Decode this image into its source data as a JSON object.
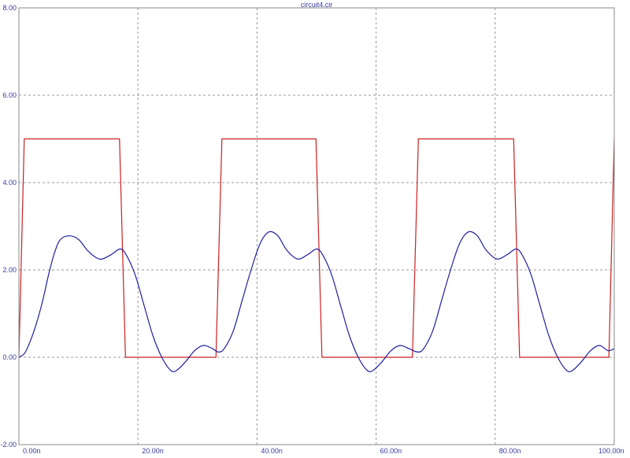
{
  "chart_data": {
    "type": "line",
    "title": "circuit4.cir",
    "xlabel": "",
    "ylabel": "",
    "xlim": [
      0,
      100
    ],
    "ylim": [
      -2,
      8
    ],
    "grid": true,
    "x_ticks": [
      "0.00n",
      "20.00n",
      "40.00n",
      "60.00n",
      "80.00n",
      "100.00n"
    ],
    "x_tick_values": [
      0,
      20,
      40,
      60,
      80,
      100
    ],
    "y_ticks": [
      "8.00",
      "6.00",
      "4.00",
      "2.00",
      "0.00",
      "-2.00"
    ],
    "y_tick_values": [
      8,
      6,
      4,
      2,
      0,
      -2
    ],
    "series": [
      {
        "color": "#cc2020",
        "x": [
          0,
          0.9,
          16.9,
          17.9,
          33.1,
          34.1,
          49.9,
          50.9,
          66.1,
          67.1,
          83.1,
          84.1,
          99.1,
          100
        ],
        "y": [
          0,
          5,
          5,
          0,
          0,
          5,
          5,
          0,
          0,
          5,
          5,
          0,
          0,
          5
        ]
      },
      {
        "color": "#2020a0",
        "x": [
          0,
          1,
          2,
          3,
          4,
          5,
          6,
          7,
          8.5,
          10,
          11.5,
          13,
          14,
          15.5,
          17,
          18,
          19.5,
          21,
          22.5,
          24,
          25.5,
          26.5,
          28,
          29.5,
          31,
          32.5,
          33.5,
          34.5,
          36,
          37.5,
          39,
          40.5,
          42,
          43.5,
          45,
          46.8,
          48.5,
          50,
          51,
          52.5,
          54,
          55.5,
          57,
          58.5,
          59.5,
          61,
          62.5,
          64,
          65.5,
          67,
          68,
          69.5,
          71,
          72.5,
          74,
          75.5,
          77,
          78.5,
          80.3,
          82,
          83.5,
          84.5,
          86,
          87.5,
          89,
          90.5,
          92,
          93,
          94.5,
          96,
          97.5,
          99,
          100
        ],
        "y": [
          0,
          0.1,
          0.4,
          0.8,
          1.3,
          1.9,
          2.4,
          2.7,
          2.78,
          2.7,
          2.45,
          2.28,
          2.25,
          2.35,
          2.48,
          2.35,
          1.9,
          1.2,
          0.5,
          0,
          -0.3,
          -0.3,
          -0.1,
          0.15,
          0.27,
          0.2,
          0.12,
          0.2,
          0.6,
          1.3,
          2.0,
          2.6,
          2.87,
          2.78,
          2.45,
          2.25,
          2.35,
          2.48,
          2.35,
          1.9,
          1.2,
          0.5,
          0,
          -0.3,
          -0.3,
          -0.1,
          0.15,
          0.27,
          0.2,
          0.12,
          0.2,
          0.6,
          1.3,
          2.0,
          2.6,
          2.87,
          2.78,
          2.45,
          2.25,
          2.35,
          2.48,
          2.35,
          1.9,
          1.2,
          0.5,
          0,
          -0.3,
          -0.3,
          -0.1,
          0.15,
          0.27,
          0.15,
          0.2
        ]
      }
    ]
  }
}
